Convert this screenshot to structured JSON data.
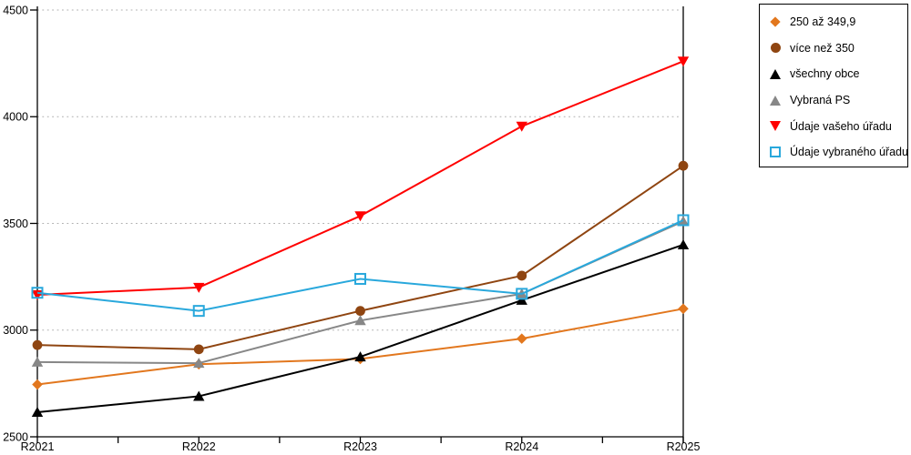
{
  "chart_data": {
    "type": "line",
    "title": "",
    "xlabel": "",
    "ylabel": "",
    "categories": [
      "R2021",
      "R2022",
      "R2023",
      "R2024",
      "R2025"
    ],
    "series": [
      {
        "name": "250 až 349,9",
        "marker": "diamond",
        "color": "#E2771E",
        "values": [
          2745,
          2840,
          2865,
          2960,
          3100
        ]
      },
      {
        "name": "více než 350",
        "marker": "circle",
        "color": "#8F4511",
        "values": [
          2930,
          2910,
          3090,
          3255,
          3770
        ]
      },
      {
        "name": "všechny obce",
        "marker": "triangle-up",
        "color": "#000000",
        "values": [
          2615,
          2690,
          2875,
          3140,
          3400
        ]
      },
      {
        "name": "Vybraná PS",
        "marker": "triangle-up",
        "color": "#878787",
        "values": [
          2850,
          2845,
          3045,
          3170,
          3510
        ]
      },
      {
        "name": "Údaje vašeho úřadu",
        "marker": "triangle-down",
        "color": "#FF0000",
        "values": [
          3165,
          3200,
          3535,
          3955,
          4260
        ]
      },
      {
        "name": "Údaje vybraného úřadu",
        "marker": "square-open",
        "color": "#29A8DC",
        "values": [
          3175,
          3090,
          3240,
          3170,
          3515
        ]
      }
    ],
    "ylim": [
      2500,
      4500
    ],
    "yticks": [
      2500,
      3000,
      3500,
      4000,
      4500
    ],
    "grid": "horizontal dotted",
    "gridline_color": "#AFAFAF",
    "axis_color": "#000000",
    "legend_position": "top-right"
  }
}
